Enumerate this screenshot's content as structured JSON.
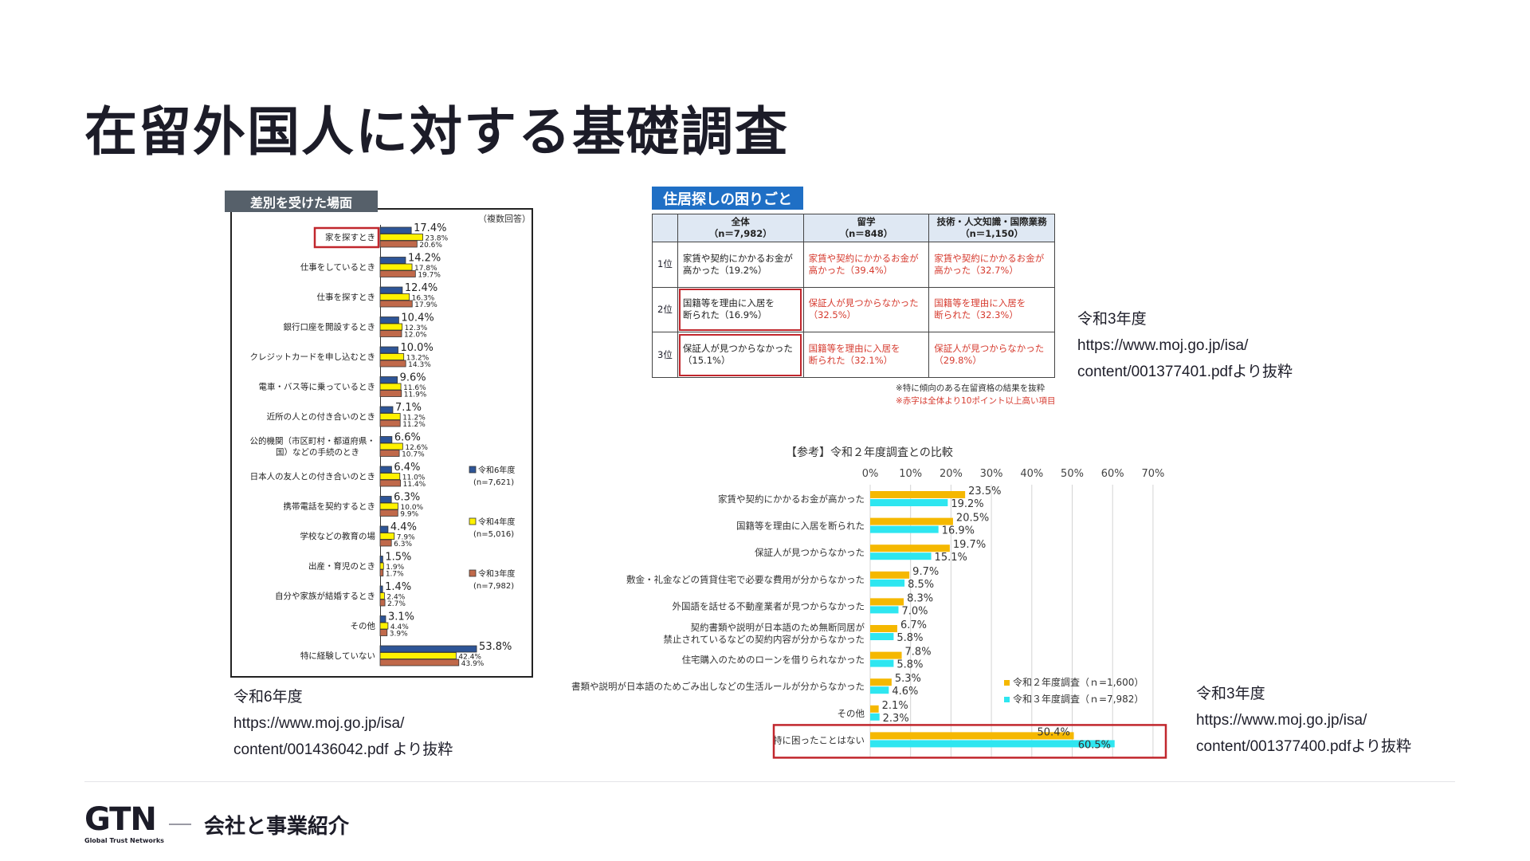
{
  "page": {
    "title": "在留外国人に対する基礎調査",
    "section_title": "会社と事業紹介",
    "logo": {
      "mark": "GTN",
      "subtitle": "Global Trust Networks"
    }
  },
  "chart_data": [
    {
      "type": "bar",
      "orientation": "horizontal",
      "title": "差別を受けた場面",
      "note": "（複数回答）",
      "categories": [
        [
          "家を探すとき"
        ],
        [
          "仕事をしているとき"
        ],
        [
          "仕事を探すとき"
        ],
        [
          "銀行口座を開設するとき"
        ],
        [
          "クレジットカードを申し込むとき"
        ],
        [
          "電車・バス等に乗っているとき"
        ],
        [
          "近所の人との付き合いのとき"
        ],
        [
          "公的機関（市区町村・都道府県・",
          "国）などの手続のとき"
        ],
        [
          "日本人の友人との付き合いのとき"
        ],
        [
          "携帯電話を契約するとき"
        ],
        [
          "学校などの教育の場"
        ],
        [
          "出産・育児のとき"
        ],
        [
          "自分や家族が結婚するとき"
        ],
        [
          "その他"
        ],
        [
          "特に経験していない"
        ]
      ],
      "highlighted_category": "家を探すとき",
      "series": [
        {
          "name": "令和6年度",
          "n": "(n=7,621)",
          "color": "#2e5597",
          "values": [
            17.4,
            14.2,
            12.4,
            10.4,
            10.0,
            9.6,
            7.1,
            6.6,
            6.4,
            6.3,
            4.4,
            1.5,
            1.4,
            3.1,
            53.8
          ]
        },
        {
          "name": "令和4年度",
          "n": "(n=5,016)",
          "color": "#fff200",
          "values": [
            23.8,
            17.8,
            16.3,
            12.3,
            13.2,
            11.6,
            11.2,
            12.6,
            11.0,
            10.0,
            7.9,
            1.9,
            2.4,
            4.4,
            42.4
          ]
        },
        {
          "name": "令和3年度",
          "n": "(n=7,982)",
          "color": "#c0694a",
          "values": [
            20.6,
            19.7,
            17.9,
            12.0,
            14.3,
            11.9,
            11.2,
            10.7,
            11.4,
            9.9,
            6.3,
            1.7,
            2.7,
            3.9,
            43.9
          ]
        }
      ],
      "xlim": [
        0,
        60
      ],
      "grid": false,
      "legend_position": "right",
      "caption": [
        "令和6年度",
        "https://www.moj.go.jp/isa/",
        "content/001436042.pdf より抜粋"
      ]
    },
    {
      "type": "table",
      "title": "住居探しの困りごと",
      "columns": [
        [
          "全体",
          "（n＝7,982）"
        ],
        [
          "留学",
          "（n＝848）"
        ],
        [
          "技術・人文知識・国際業務",
          "（n＝1,150）"
        ]
      ],
      "rows": [
        {
          "rank": "1位",
          "cells": [
            [
              "家賃や契約にかかるお金が",
              "高かった（19.2%）"
            ],
            [
              "家賃や契約にかかるお金が",
              "高かった（39.4%）"
            ],
            [
              "家賃や契約にかかるお金が",
              "高かった（32.7%）"
            ]
          ]
        },
        {
          "rank": "2位",
          "cells": [
            [
              "国籍等を理由に入居を",
              "断られた（16.9%）"
            ],
            [
              "保証人が見つからなかった",
              "（32.5%）"
            ],
            [
              "国籍等を理由に入居を",
              "断られた（32.3%）"
            ]
          ]
        },
        {
          "rank": "3位",
          "cells": [
            [
              "保証人が見つからなかった",
              "（15.1%）"
            ],
            [
              "国籍等を理由に入居を",
              "断られた（32.1%）"
            ],
            [
              "保証人が見つからなかった",
              "（29.8%）"
            ]
          ]
        }
      ],
      "highlighted_cells": [
        "2位-全体",
        "3位-全体"
      ],
      "notes": [
        "※特に傾向のある在留資格の結果を抜粋",
        "※赤字は全体より10ポイント以上高い項目"
      ],
      "caption": [
        "令和3年度",
        "https://www.moj.go.jp/isa/",
        "content/001377401.pdfより抜粋"
      ]
    },
    {
      "type": "bar",
      "orientation": "horizontal",
      "title": "【参考】令和２年度調査との比較",
      "categories": [
        [
          "家賃や契約にかかるお金が高かった"
        ],
        [
          "国籍等を理由に入居を断られた"
        ],
        [
          "保証人が見つからなかった"
        ],
        [
          "敷金・礼金などの賃貸住宅で必要な費用が分からなかった"
        ],
        [
          "外国語を話せる不動産業者が見つからなかった"
        ],
        [
          "契約書類や説明が日本語のため無断同居が",
          "禁止されているなどの契約内容が分からなかった"
        ],
        [
          "住宅購入のためのローンを借りられなかった"
        ],
        [
          "書類や説明が日本語のためごみ出しなどの生活ルールが分からなかった"
        ],
        [
          "その他"
        ],
        [
          "特に困ったことはない"
        ]
      ],
      "highlighted_category": "特に困ったことはない",
      "series": [
        {
          "name": "令和２年度調査（ｎ=1,600）",
          "color": "#f5b800",
          "values": [
            23.5,
            20.5,
            19.7,
            9.7,
            8.3,
            6.7,
            7.8,
            5.3,
            2.1,
            50.4
          ]
        },
        {
          "name": "令和３年度調査（ｎ=7,982）",
          "color": "#2ee6f0",
          "values": [
            19.2,
            16.9,
            15.1,
            8.5,
            7.0,
            5.8,
            5.8,
            4.6,
            2.3,
            60.5
          ]
        }
      ],
      "xlim": [
        0,
        70
      ],
      "xticks": [
        "0%",
        "10%",
        "20%",
        "30%",
        "40%",
        "50%",
        "60%",
        "70%"
      ],
      "grid": true,
      "legend_position": "bottom-right",
      "caption": [
        "令和3年度",
        "https://www.moj.go.jp/isa/",
        "content/001377400.pdfより抜粋"
      ]
    }
  ]
}
